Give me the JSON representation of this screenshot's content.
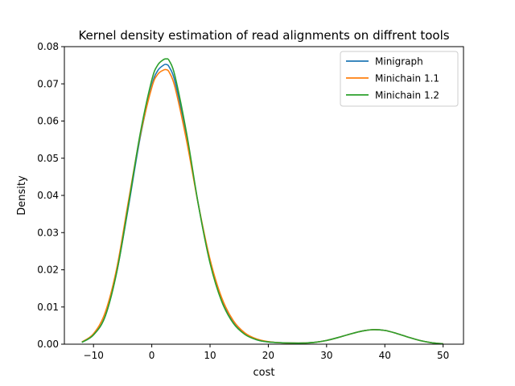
{
  "chart_data": {
    "type": "line",
    "title": "Kernel density estimation of read alignments on diffrent tools",
    "xlabel": "cost",
    "ylabel": "Density",
    "xlim": [
      -15,
      53.5
    ],
    "ylim": [
      0,
      0.08
    ],
    "xticks": [
      -10,
      0,
      10,
      20,
      30,
      40,
      50
    ],
    "xtick_labels": [
      "−10",
      "0",
      "10",
      "20",
      "30",
      "40",
      "50"
    ],
    "yticks": [
      0,
      0.01,
      0.02,
      0.03,
      0.04,
      0.05,
      0.06,
      0.07,
      0.08
    ],
    "ytick_labels": [
      "0.00",
      "0.01",
      "0.02",
      "0.03",
      "0.04",
      "0.05",
      "0.06",
      "0.07",
      "0.08"
    ],
    "grid": false,
    "legend_position": "top-right",
    "series": [
      {
        "name": "Minigraph",
        "color": "#1f77b4",
        "x": [
          -12,
          -10,
          -8,
          -6,
          -4,
          -2,
          0,
          1,
          2,
          2.5,
          3,
          4,
          6,
          8,
          10,
          12,
          14,
          16,
          18,
          20,
          22,
          24,
          26,
          28,
          30,
          32,
          34,
          36,
          38,
          40,
          42,
          44,
          46,
          48,
          50
        ],
        "y": [
          0.0005,
          0.0025,
          0.0075,
          0.0195,
          0.037,
          0.0555,
          0.0695,
          0.0735,
          0.075,
          0.0752,
          0.0745,
          0.0705,
          0.0555,
          0.0375,
          0.022,
          0.0118,
          0.0058,
          0.0027,
          0.0012,
          0.0006,
          0.0004,
          0.0003,
          0.0003,
          0.0005,
          0.001,
          0.0018,
          0.0027,
          0.0035,
          0.0039,
          0.0037,
          0.0029,
          0.0019,
          0.001,
          0.0004,
          0.0001
        ]
      },
      {
        "name": "Minichain 1.1",
        "color": "#ff7f0e",
        "x": [
          -12,
          -10,
          -8,
          -6,
          -4,
          -2,
          0,
          1,
          2,
          2.5,
          3,
          4,
          6,
          8,
          10,
          12,
          14,
          16,
          18,
          20,
          22,
          24,
          26,
          28,
          30,
          32,
          34,
          36,
          38,
          40,
          42,
          44,
          46,
          48,
          50
        ],
        "y": [
          0.0006,
          0.0028,
          0.0085,
          0.0205,
          0.0385,
          0.056,
          0.069,
          0.0725,
          0.0737,
          0.0738,
          0.0731,
          0.069,
          0.0545,
          0.0375,
          0.0228,
          0.0125,
          0.0063,
          0.003,
          0.0014,
          0.0007,
          0.0004,
          0.0003,
          0.0003,
          0.0005,
          0.001,
          0.0018,
          0.0027,
          0.0035,
          0.0039,
          0.0037,
          0.0029,
          0.0019,
          0.001,
          0.0004,
          0.0001
        ]
      },
      {
        "name": "Minichain 1.2",
        "color": "#2ca02c",
        "x": [
          -12,
          -10,
          -8,
          -6,
          -4,
          -2,
          0,
          1,
          2,
          2.5,
          3,
          4,
          6,
          8,
          10,
          12,
          14,
          16,
          18,
          20,
          22,
          24,
          26,
          28,
          30,
          32,
          34,
          36,
          38,
          40,
          42,
          44,
          46,
          48,
          50
        ],
        "y": [
          0.0005,
          0.0025,
          0.0075,
          0.0195,
          0.0375,
          0.0565,
          0.071,
          0.075,
          0.0765,
          0.0767,
          0.0762,
          0.072,
          0.0565,
          0.0375,
          0.0218,
          0.0115,
          0.0056,
          0.0026,
          0.0012,
          0.0006,
          0.0004,
          0.0003,
          0.0003,
          0.0005,
          0.001,
          0.0018,
          0.0027,
          0.0035,
          0.0039,
          0.0037,
          0.0029,
          0.0019,
          0.001,
          0.0004,
          0.0001
        ]
      }
    ]
  }
}
